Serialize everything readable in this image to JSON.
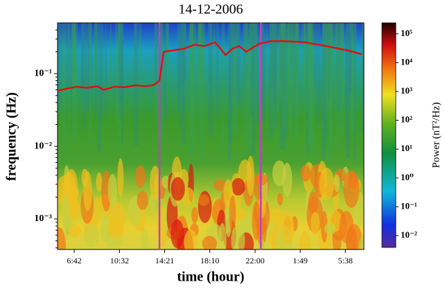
{
  "chart_data": {
    "type": "spectrogram",
    "title": "14-12-2006",
    "title_color": "#a01818",
    "xlabel": "time (hour)",
    "ylabel": "frequency (Hz)",
    "colorbar_label": "Power (nT²/Hz)",
    "xlim": [
      5.29,
      31.2
    ],
    "xticks": [
      {
        "value": 6.7,
        "label": "6:42"
      },
      {
        "value": 10.533,
        "label": "10:32"
      },
      {
        "value": 14.35,
        "label": "14:21"
      },
      {
        "value": 18.167,
        "label": "18:10"
      },
      {
        "value": 22.0,
        "label": "22:00"
      },
      {
        "value": 25.817,
        "label": "1:49"
      },
      {
        "value": 29.633,
        "label": "5:38"
      }
    ],
    "ylim": [
      0.00038,
      0.5
    ],
    "yscale": "log",
    "yticks": [
      {
        "value": 0.001,
        "label": "10⁻³"
      },
      {
        "value": 0.01,
        "label": "10⁻²"
      },
      {
        "value": 0.1,
        "label": "10⁻¹"
      }
    ],
    "clim": [
      0.0039,
      240000
    ],
    "cticks": [
      {
        "value": 0.01,
        "label": "10⁻²"
      },
      {
        "value": 0.1,
        "label": "10⁻¹"
      },
      {
        "value": 1,
        "label": "10⁰"
      },
      {
        "value": 10,
        "label": "10¹"
      },
      {
        "value": 100,
        "label": "10²"
      },
      {
        "value": 1000,
        "label": "10³"
      },
      {
        "value": 10000,
        "label": "10⁴"
      },
      {
        "value": 100000,
        "label": "10⁵"
      }
    ],
    "vlines": [
      13.91,
      22.48
    ],
    "vline_color": "#c040c0",
    "x": [
      5.29,
      5.99,
      6.88,
      7.76,
      8.64,
      9.22,
      10.1,
      10.98,
      11.86,
      12.74,
      13.44,
      13.91,
      14.27,
      15.09,
      15.97,
      16.85,
      17.73,
      18.61,
      19.08,
      19.49,
      20.07,
      20.66,
      21.25,
      21.83,
      22.42,
      23.3,
      24.47,
      26.23,
      27.99,
      29.75,
      31.04
    ],
    "series": [
      {
        "color": "#e01010",
        "values": [
          0.058,
          0.062,
          0.066,
          0.064,
          0.067,
          0.06,
          0.066,
          0.065,
          0.069,
          0.067,
          0.07,
          0.08,
          0.2,
          0.21,
          0.22,
          0.25,
          0.24,
          0.27,
          0.22,
          0.18,
          0.22,
          0.24,
          0.2,
          0.23,
          0.26,
          0.28,
          0.28,
          0.27,
          0.24,
          0.21,
          0.185
        ]
      }
    ]
  }
}
